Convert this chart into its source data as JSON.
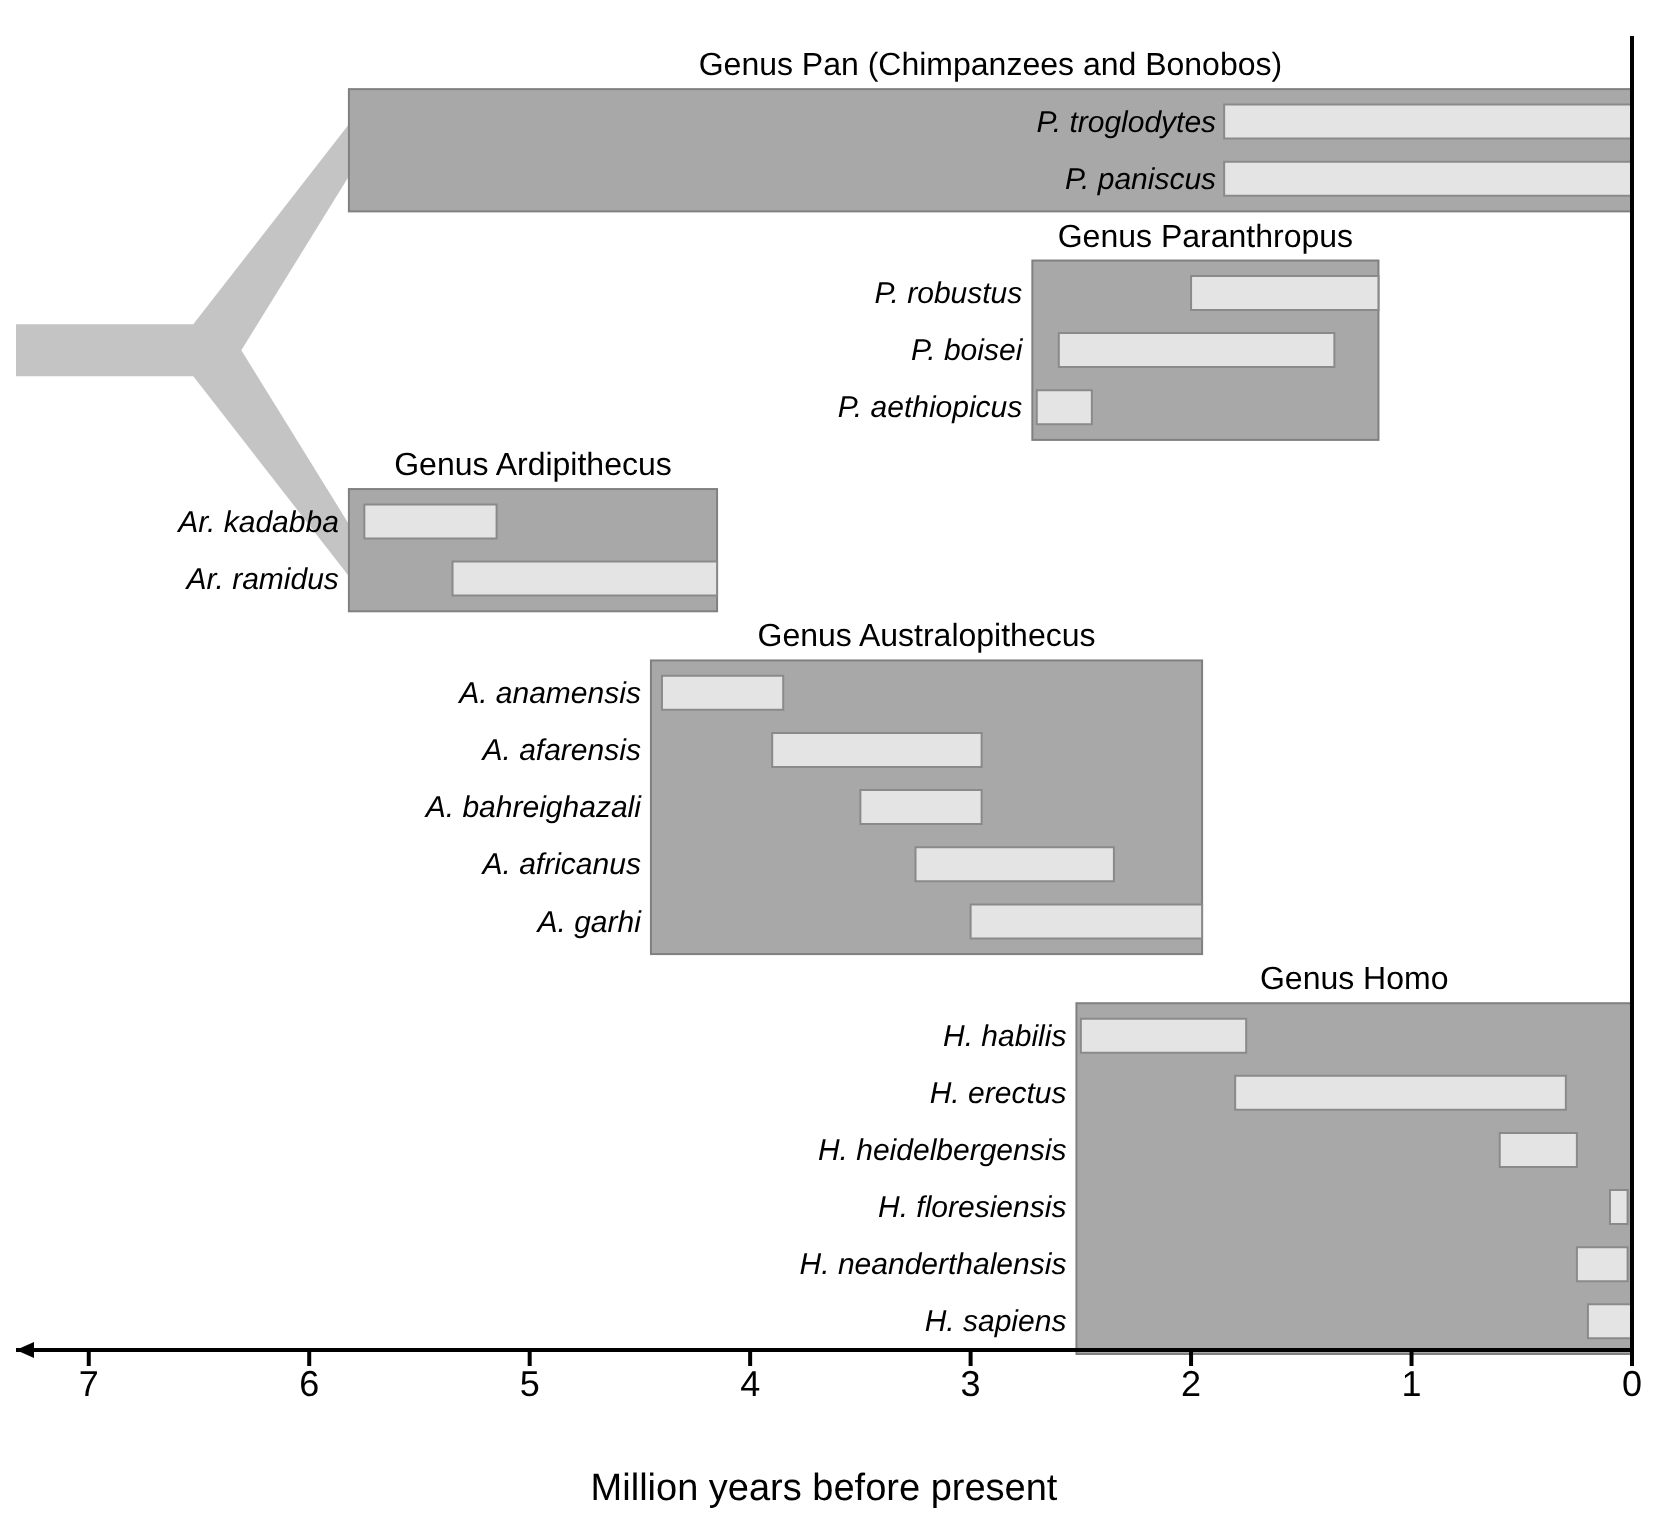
{
  "chart_data": {
    "type": "bar",
    "orientation": "horizontal",
    "xlabel": "Million years before present",
    "xlim": [
      7.33,
      0
    ],
    "xticks": [
      7,
      6,
      5,
      4,
      3,
      2,
      1,
      0
    ],
    "categories": [
      null,
      "P. troglodytes",
      "P. paniscus",
      null,
      "P. robustus",
      "P. boisei",
      "P. aethiopicus",
      null,
      "Ar. kadabba",
      "Ar. ramidus",
      null,
      "A. anamensis",
      "A. afarensis",
      "A. bahreighazali",
      "A. africanus",
      "A. garhi",
      null,
      "H. habilis",
      "H. erectus",
      "H. heidelbergensis",
      "H. floresiensis",
      "H. neanderthalensis",
      "H. sapiens"
    ],
    "series": [
      {
        "color": "#e4e4e4",
        "values": [
          null,
          1.85,
          1.85,
          null,
          null,
          null,
          null,
          null,
          null,
          null,
          null,
          null,
          null,
          null,
          null,
          null,
          null,
          null,
          null,
          null,
          null,
          null,
          null
        ],
        "base": [
          null,
          0,
          0,
          null,
          null,
          null,
          null,
          null,
          null,
          null,
          null,
          null,
          null,
          null,
          null,
          null,
          null,
          null,
          null,
          null,
          null,
          null,
          null
        ]
      },
      {
        "color": "#e4e4e4",
        "values": [
          null,
          null,
          null,
          null,
          0.85,
          1.25,
          0.25,
          null,
          null,
          null,
          null,
          null,
          null,
          null,
          null,
          null,
          null,
          null,
          null,
          null,
          null,
          null,
          null
        ],
        "base": [
          null,
          null,
          null,
          null,
          1.15,
          1.35,
          2.45,
          null,
          null,
          null,
          null,
          null,
          null,
          null,
          null,
          null,
          null,
          null,
          null,
          null,
          null,
          null,
          null
        ]
      },
      {
        "color": "#e4e4e4",
        "values": [
          null,
          null,
          null,
          null,
          null,
          null,
          null,
          null,
          0.6,
          1.2,
          null,
          null,
          null,
          null,
          null,
          null,
          null,
          null,
          null,
          null,
          null,
          null,
          null
        ],
        "base": [
          null,
          null,
          null,
          null,
          null,
          null,
          null,
          null,
          5.15,
          4.15,
          null,
          null,
          null,
          null,
          null,
          null,
          null,
          null,
          null,
          null,
          null,
          null,
          null
        ]
      },
      {
        "color": "#e4e4e4",
        "values": [
          null,
          null,
          null,
          null,
          null,
          null,
          null,
          null,
          null,
          null,
          null,
          0.55,
          0.95,
          0.55,
          0.9,
          1.05,
          null,
          null,
          null,
          null,
          null,
          null,
          null
        ],
        "base": [
          null,
          null,
          null,
          null,
          null,
          null,
          null,
          null,
          null,
          null,
          null,
          3.85,
          2.95,
          2.95,
          2.35,
          1.95,
          null,
          null,
          null,
          null,
          null,
          null,
          null
        ]
      },
      {
        "color": "#e4e4e4",
        "values": [
          null,
          null,
          null,
          null,
          null,
          null,
          null,
          null,
          null,
          null,
          null,
          null,
          null,
          null,
          null,
          null,
          null,
          0.75,
          1.5,
          0.35,
          0.08,
          0.23,
          0.2
        ],
        "base": [
          null,
          null,
          null,
          null,
          null,
          null,
          null,
          null,
          null,
          null,
          null,
          null,
          null,
          null,
          null,
          null,
          null,
          1.75,
          0.3,
          0.25,
          0.02,
          0.02,
          0
        ]
      }
    ],
    "bands": [
      {
        "axis": "x",
        "from": 5.82,
        "to": 0,
        "label": "Genus Pan (Chimpanzees and Bonobos)",
        "color": "#a8a8a8"
      },
      {
        "axis": "x",
        "from": 2.72,
        "to": 1.15,
        "label": "Genus Paranthropus",
        "color": "#a8a8a8"
      },
      {
        "axis": "x",
        "from": 5.82,
        "to": 4.15,
        "label": "Genus Ardipithecus",
        "color": "#a8a8a8"
      },
      {
        "axis": "x",
        "from": 4.45,
        "to": 1.95,
        "label": "Genus Australopithecus",
        "color": "#a8a8a8"
      },
      {
        "axis": "x",
        "from": 2.52,
        "to": 0,
        "label": "Genus Homo",
        "color": "#a8a8a8"
      }
    ]
  }
}
